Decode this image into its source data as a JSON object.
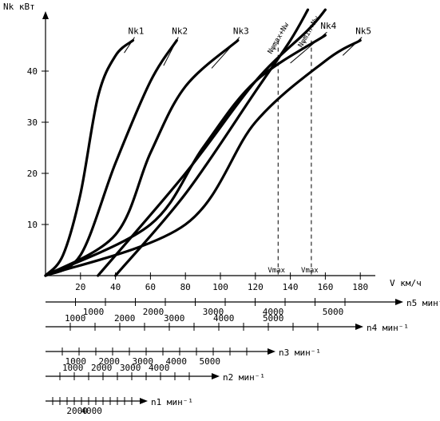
{
  "chart_data": {
    "type": "line",
    "ylabel": "Nk кВт",
    "xlabel": "V км/ч",
    "ylim": [
      0,
      52
    ],
    "xlim": [
      0,
      190
    ],
    "y_ticks": [
      10,
      20,
      30,
      40
    ],
    "x_ticks": [
      20,
      40,
      60,
      80,
      100,
      120,
      140,
      160,
      180
    ],
    "series": [
      {
        "name": "Nk1",
        "x": [
          0,
          10,
          20,
          30,
          40,
          50
        ],
        "y": [
          0,
          4,
          16,
          35,
          43,
          46
        ]
      },
      {
        "name": "Nk2",
        "x": [
          0,
          20,
          40,
          60,
          75
        ],
        "y": [
          0,
          4,
          22,
          38,
          46
        ]
      },
      {
        "name": "Nk3",
        "x": [
          0,
          40,
          60,
          80,
          110
        ],
        "y": [
          0,
          8,
          24,
          37,
          46
        ]
      },
      {
        "name": "Nk4",
        "x": [
          0,
          60,
          90,
          120,
          160
        ],
        "y": [
          0,
          10,
          25,
          38,
          47
        ]
      },
      {
        "name": "Nk5",
        "x": [
          0,
          80,
          120,
          160,
          180
        ],
        "y": [
          0,
          10,
          30,
          42,
          46
        ]
      }
    ],
    "resistance_curves": [
      {
        "x": [
          40,
          80,
          120,
          140,
          150
        ],
        "y": [
          0,
          16,
          36,
          46,
          52
        ]
      },
      {
        "x": [
          30,
          80,
          120,
          150,
          160
        ],
        "y": [
          0,
          20,
          38,
          48,
          52
        ]
      }
    ],
    "resistance_labels": [
      "Nψmax+Nw",
      "Nψmin+Nw"
    ],
    "vmax_labels": [
      "Vmax",
      "Vmax"
    ],
    "vmax_values": [
      133,
      152
    ],
    "engine_scales": [
      {
        "label": "n5 мин⁻¹",
        "ticks": [
          1000,
          2000,
          3000,
          4000,
          5000
        ]
      },
      {
        "label": "n4 мин⁻¹",
        "ticks": [
          1000,
          2000,
          3000,
          4000,
          5000
        ]
      },
      {
        "label": "n3 мин⁻¹",
        "ticks": [
          1000,
          2000,
          3000,
          4000,
          5000
        ]
      },
      {
        "label": "n2 мин⁻¹",
        "ticks": [
          1000,
          2000,
          3000,
          4000
        ]
      },
      {
        "label": "n1 мин⁻¹",
        "ticks": [
          2000,
          4000
        ]
      }
    ],
    "engine_scale_tick_labels": [
      [
        "1000",
        "2000",
        "3000",
        "4000",
        "5000"
      ],
      [
        "1000",
        "2000",
        "3000",
        "4000",
        "5000"
      ],
      [
        "1000",
        "2000",
        "3000",
        "4000",
        "5000"
      ],
      [
        "1000",
        "2000",
        "3000",
        "4000"
      ],
      [
        "2000",
        "4000"
      ]
    ],
    "grid": false
  }
}
